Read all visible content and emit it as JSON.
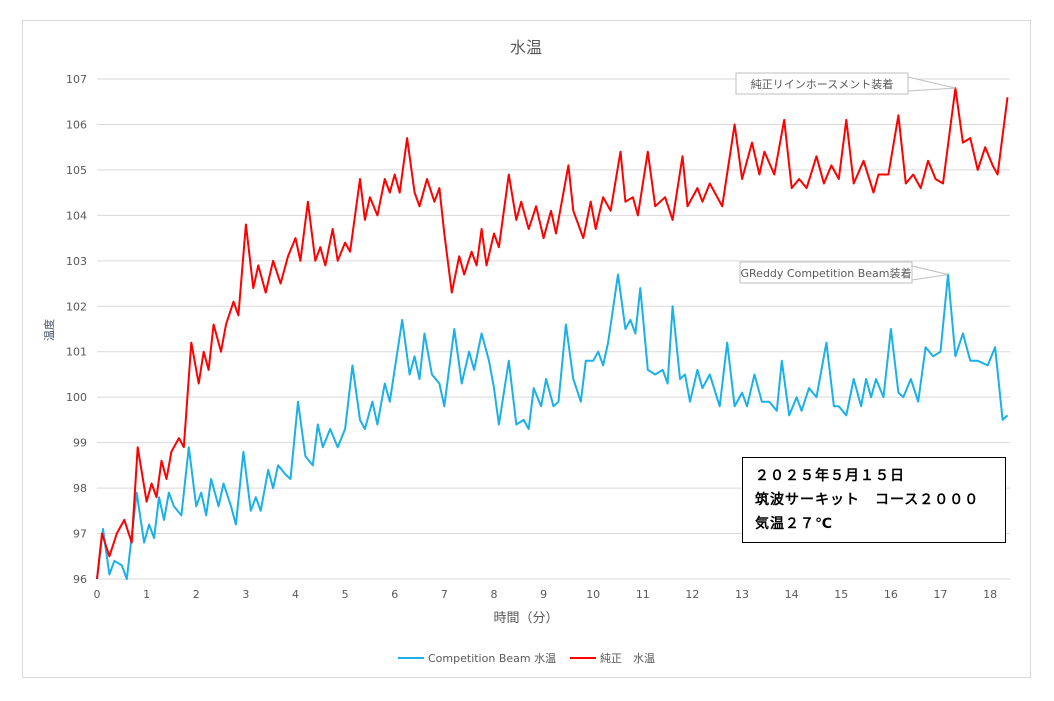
{
  "chart_data": {
    "type": "line",
    "title": "水温",
    "xlabel": "時間（分）",
    "ylabel": "温度",
    "xlim": [
      0,
      18.4
    ],
    "ylim": [
      96,
      107
    ],
    "xticks": [
      0,
      1,
      2,
      3,
      4,
      5,
      6,
      7,
      8,
      9,
      10,
      11,
      12,
      13,
      14,
      15,
      16,
      17,
      18
    ],
    "yticks": [
      96,
      97,
      98,
      99,
      100,
      101,
      102,
      103,
      104,
      105,
      106,
      107
    ],
    "grid": true,
    "legend_position": "bottom",
    "colors": {
      "competition": "#1ab0e8",
      "stock": "#ff0000",
      "grid": "#d9d9d9",
      "axis_text": "#595959"
    },
    "series": [
      {
        "name": "Competition Beam 水温",
        "color": "#1ab0e8",
        "points": [
          [
            0,
            96.0
          ],
          [
            0.12,
            97.1
          ],
          [
            0.25,
            96.1
          ],
          [
            0.35,
            96.4
          ],
          [
            0.5,
            96.3
          ],
          [
            0.6,
            96.0
          ],
          [
            0.8,
            97.9
          ],
          [
            0.95,
            96.8
          ],
          [
            1.05,
            97.2
          ],
          [
            1.15,
            96.9
          ],
          [
            1.25,
            97.8
          ],
          [
            1.35,
            97.3
          ],
          [
            1.45,
            97.9
          ],
          [
            1.55,
            97.6
          ],
          [
            1.7,
            97.4
          ],
          [
            1.85,
            98.9
          ],
          [
            2.0,
            97.6
          ],
          [
            2.1,
            97.9
          ],
          [
            2.2,
            97.4
          ],
          [
            2.3,
            98.2
          ],
          [
            2.45,
            97.6
          ],
          [
            2.55,
            98.1
          ],
          [
            2.7,
            97.6
          ],
          [
            2.8,
            97.2
          ],
          [
            2.95,
            98.8
          ],
          [
            3.1,
            97.5
          ],
          [
            3.2,
            97.8
          ],
          [
            3.3,
            97.5
          ],
          [
            3.45,
            98.4
          ],
          [
            3.55,
            98.0
          ],
          [
            3.65,
            98.5
          ],
          [
            3.8,
            98.3
          ],
          [
            3.9,
            98.2
          ],
          [
            4.05,
            99.9
          ],
          [
            4.2,
            98.7
          ],
          [
            4.35,
            98.5
          ],
          [
            4.45,
            99.4
          ],
          [
            4.55,
            98.9
          ],
          [
            4.7,
            99.3
          ],
          [
            4.85,
            98.9
          ],
          [
            5.0,
            99.3
          ],
          [
            5.15,
            100.7
          ],
          [
            5.3,
            99.5
          ],
          [
            5.4,
            99.3
          ],
          [
            5.55,
            99.9
          ],
          [
            5.65,
            99.4
          ],
          [
            5.8,
            100.3
          ],
          [
            5.9,
            99.9
          ],
          [
            6.15,
            101.7
          ],
          [
            6.3,
            100.5
          ],
          [
            6.4,
            100.9
          ],
          [
            6.5,
            100.4
          ],
          [
            6.6,
            101.4
          ],
          [
            6.75,
            100.5
          ],
          [
            6.9,
            100.3
          ],
          [
            7.0,
            99.8
          ],
          [
            7.2,
            101.5
          ],
          [
            7.35,
            100.3
          ],
          [
            7.5,
            101.0
          ],
          [
            7.6,
            100.6
          ],
          [
            7.75,
            101.4
          ],
          [
            7.9,
            100.8
          ],
          [
            8.0,
            100.2
          ],
          [
            8.1,
            99.4
          ],
          [
            8.3,
            100.8
          ],
          [
            8.45,
            99.4
          ],
          [
            8.6,
            99.5
          ],
          [
            8.7,
            99.3
          ],
          [
            8.8,
            100.2
          ],
          [
            8.95,
            99.8
          ],
          [
            9.05,
            100.4
          ],
          [
            9.2,
            99.8
          ],
          [
            9.3,
            99.9
          ],
          [
            9.45,
            101.6
          ],
          [
            9.6,
            100.4
          ],
          [
            9.75,
            99.9
          ],
          [
            9.85,
            100.8
          ],
          [
            10.0,
            100.8
          ],
          [
            10.1,
            101.0
          ],
          [
            10.2,
            100.7
          ],
          [
            10.3,
            101.2
          ],
          [
            10.5,
            102.7
          ],
          [
            10.65,
            101.5
          ],
          [
            10.75,
            101.7
          ],
          [
            10.85,
            101.4
          ],
          [
            10.95,
            102.4
          ],
          [
            11.1,
            100.6
          ],
          [
            11.25,
            100.5
          ],
          [
            11.4,
            100.6
          ],
          [
            11.5,
            100.3
          ],
          [
            11.6,
            102.0
          ],
          [
            11.75,
            100.4
          ],
          [
            11.85,
            100.5
          ],
          [
            11.95,
            99.9
          ],
          [
            12.1,
            100.6
          ],
          [
            12.2,
            100.2
          ],
          [
            12.35,
            100.5
          ],
          [
            12.55,
            99.8
          ],
          [
            12.7,
            101.2
          ],
          [
            12.85,
            99.8
          ],
          [
            13.0,
            100.1
          ],
          [
            13.1,
            99.8
          ],
          [
            13.25,
            100.5
          ],
          [
            13.4,
            99.9
          ],
          [
            13.55,
            99.9
          ],
          [
            13.7,
            99.7
          ],
          [
            13.8,
            100.8
          ],
          [
            13.95,
            99.6
          ],
          [
            14.1,
            100.0
          ],
          [
            14.2,
            99.7
          ],
          [
            14.35,
            100.2
          ],
          [
            14.5,
            100.0
          ],
          [
            14.7,
            101.2
          ],
          [
            14.85,
            99.8
          ],
          [
            14.95,
            99.8
          ],
          [
            15.1,
            99.6
          ],
          [
            15.25,
            100.4
          ],
          [
            15.4,
            99.8
          ],
          [
            15.5,
            100.4
          ],
          [
            15.6,
            100.0
          ],
          [
            15.7,
            100.4
          ],
          [
            15.85,
            100.0
          ],
          [
            16.0,
            101.5
          ],
          [
            16.15,
            100.1
          ],
          [
            16.25,
            100.0
          ],
          [
            16.4,
            100.4
          ],
          [
            16.55,
            99.9
          ],
          [
            16.7,
            101.1
          ],
          [
            16.85,
            100.9
          ],
          [
            17.0,
            101.0
          ],
          [
            17.15,
            102.7
          ],
          [
            17.3,
            100.9
          ],
          [
            17.45,
            101.4
          ],
          [
            17.6,
            100.8
          ],
          [
            17.75,
            100.8
          ],
          [
            17.95,
            100.7
          ],
          [
            18.1,
            101.1
          ],
          [
            18.25,
            99.5
          ],
          [
            18.35,
            99.6
          ]
        ]
      },
      {
        "name": "純正　水温",
        "color": "#ff0000",
        "points": [
          [
            0,
            96.0
          ],
          [
            0.1,
            97.0
          ],
          [
            0.25,
            96.5
          ],
          [
            0.4,
            97.0
          ],
          [
            0.55,
            97.3
          ],
          [
            0.7,
            96.8
          ],
          [
            0.82,
            98.9
          ],
          [
            1.0,
            97.7
          ],
          [
            1.1,
            98.1
          ],
          [
            1.2,
            97.8
          ],
          [
            1.3,
            98.6
          ],
          [
            1.4,
            98.2
          ],
          [
            1.5,
            98.8
          ],
          [
            1.65,
            99.1
          ],
          [
            1.75,
            98.9
          ],
          [
            1.9,
            101.2
          ],
          [
            2.05,
            100.3
          ],
          [
            2.15,
            101.0
          ],
          [
            2.25,
            100.6
          ],
          [
            2.35,
            101.6
          ],
          [
            2.5,
            101.0
          ],
          [
            2.6,
            101.6
          ],
          [
            2.75,
            102.1
          ],
          [
            2.85,
            101.8
          ],
          [
            3.0,
            103.8
          ],
          [
            3.15,
            102.4
          ],
          [
            3.25,
            102.9
          ],
          [
            3.4,
            102.3
          ],
          [
            3.55,
            103.0
          ],
          [
            3.7,
            102.5
          ],
          [
            3.85,
            103.1
          ],
          [
            4.0,
            103.5
          ],
          [
            4.1,
            103.0
          ],
          [
            4.25,
            104.3
          ],
          [
            4.4,
            103.0
          ],
          [
            4.5,
            103.3
          ],
          [
            4.6,
            102.9
          ],
          [
            4.75,
            103.7
          ],
          [
            4.85,
            103.0
          ],
          [
            5.0,
            103.4
          ],
          [
            5.1,
            103.2
          ],
          [
            5.3,
            104.8
          ],
          [
            5.4,
            103.9
          ],
          [
            5.5,
            104.4
          ],
          [
            5.65,
            104.0
          ],
          [
            5.8,
            104.8
          ],
          [
            5.9,
            104.5
          ],
          [
            6.0,
            104.9
          ],
          [
            6.1,
            104.5
          ],
          [
            6.25,
            105.7
          ],
          [
            6.4,
            104.5
          ],
          [
            6.5,
            104.2
          ],
          [
            6.65,
            104.8
          ],
          [
            6.8,
            104.3
          ],
          [
            6.9,
            104.6
          ],
          [
            7.0,
            103.6
          ],
          [
            7.15,
            102.3
          ],
          [
            7.3,
            103.1
          ],
          [
            7.4,
            102.7
          ],
          [
            7.55,
            103.2
          ],
          [
            7.65,
            102.9
          ],
          [
            7.75,
            103.7
          ],
          [
            7.85,
            102.9
          ],
          [
            8.0,
            103.6
          ],
          [
            8.1,
            103.3
          ],
          [
            8.3,
            104.9
          ],
          [
            8.45,
            103.9
          ],
          [
            8.55,
            104.3
          ],
          [
            8.7,
            103.7
          ],
          [
            8.85,
            104.2
          ],
          [
            9.0,
            103.5
          ],
          [
            9.15,
            104.1
          ],
          [
            9.25,
            103.6
          ],
          [
            9.5,
            105.1
          ],
          [
            9.6,
            104.1
          ],
          [
            9.8,
            103.5
          ],
          [
            9.95,
            104.3
          ],
          [
            10.05,
            103.7
          ],
          [
            10.2,
            104.4
          ],
          [
            10.35,
            104.1
          ],
          [
            10.55,
            105.4
          ],
          [
            10.65,
            104.3
          ],
          [
            10.8,
            104.4
          ],
          [
            10.9,
            104.0
          ],
          [
            11.1,
            105.4
          ],
          [
            11.25,
            104.2
          ],
          [
            11.45,
            104.4
          ],
          [
            11.6,
            103.9
          ],
          [
            11.8,
            105.3
          ],
          [
            11.9,
            104.2
          ],
          [
            12.1,
            104.6
          ],
          [
            12.2,
            104.3
          ],
          [
            12.35,
            104.7
          ],
          [
            12.6,
            104.2
          ],
          [
            12.85,
            106.0
          ],
          [
            13.0,
            104.8
          ],
          [
            13.2,
            105.6
          ],
          [
            13.35,
            104.9
          ],
          [
            13.45,
            105.4
          ],
          [
            13.65,
            104.9
          ],
          [
            13.85,
            106.1
          ],
          [
            14.0,
            104.6
          ],
          [
            14.15,
            104.8
          ],
          [
            14.3,
            104.6
          ],
          [
            14.5,
            105.3
          ],
          [
            14.65,
            104.7
          ],
          [
            14.8,
            105.1
          ],
          [
            14.95,
            104.8
          ],
          [
            15.1,
            106.1
          ],
          [
            15.25,
            104.7
          ],
          [
            15.45,
            105.2
          ],
          [
            15.65,
            104.5
          ],
          [
            15.75,
            104.9
          ],
          [
            15.95,
            104.9
          ],
          [
            16.15,
            106.2
          ],
          [
            16.3,
            104.7
          ],
          [
            16.45,
            104.9
          ],
          [
            16.6,
            104.6
          ],
          [
            16.75,
            105.2
          ],
          [
            16.9,
            104.8
          ],
          [
            17.05,
            104.7
          ],
          [
            17.3,
            106.8
          ],
          [
            17.45,
            105.6
          ],
          [
            17.6,
            105.7
          ],
          [
            17.75,
            105.0
          ],
          [
            17.9,
            105.5
          ],
          [
            18.05,
            105.1
          ],
          [
            18.15,
            104.9
          ],
          [
            18.35,
            106.6
          ]
        ]
      }
    ],
    "annotations": [
      {
        "text": "純正リインホースメント装着",
        "series": 1,
        "x": 17.3,
        "y": 106.8
      },
      {
        "text": "GReddy Competition Beam装着",
        "series": 0,
        "x": 17.15,
        "y": 102.7
      }
    ],
    "textbox": [
      "２０２５年５月１５日",
      "筑波サーキット　コース２０００",
      "気温２７℃"
    ]
  }
}
